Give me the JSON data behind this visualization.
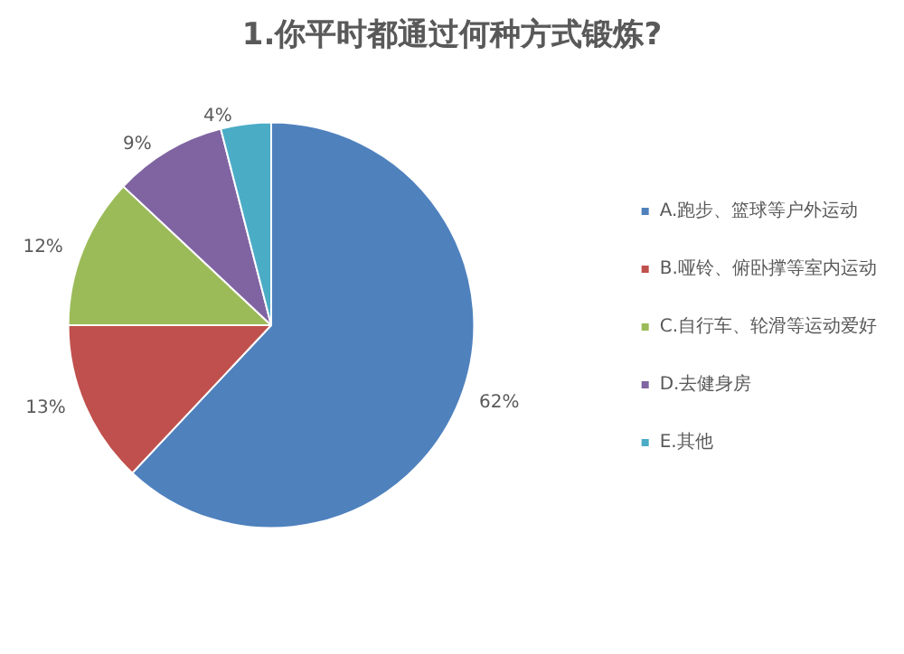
{
  "chart_data": {
    "type": "pie",
    "title": "1.你平时都通过何种方式锻炼?",
    "categories": [
      "A.跑步、篮球等户外运动",
      "B.哑铃、俯卧撑等室内运动",
      "C.自行车、轮滑等运动爱好",
      "D.去健身房",
      "E.其他"
    ],
    "values": [
      62,
      13,
      12,
      9,
      4
    ],
    "value_labels": [
      "62%",
      "13%",
      "12%",
      "9%",
      "4%"
    ],
    "colors": [
      "#4f81bd",
      "#c0504d",
      "#9bbb59",
      "#8064a2",
      "#4bacc6"
    ],
    "legend": "right"
  }
}
